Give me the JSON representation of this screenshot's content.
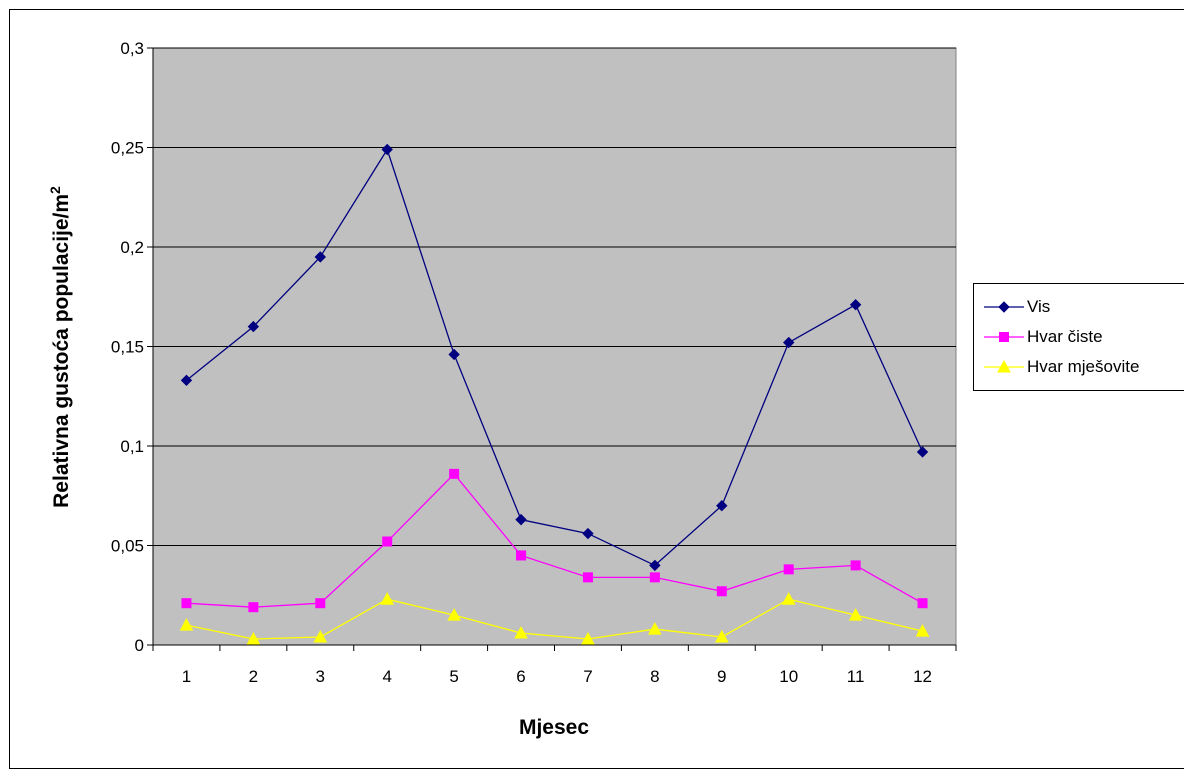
{
  "chart_data": {
    "type": "line",
    "title": "",
    "xlabel": "Mjesec",
    "ylabel": "Relativna gustoća populacije/m",
    "ylabel_superscript": "2",
    "categories": [
      "1",
      "2",
      "3",
      "4",
      "5",
      "6",
      "7",
      "8",
      "9",
      "10",
      "11",
      "12"
    ],
    "ylim": [
      0,
      0.3
    ],
    "yticks": [
      0,
      0.05,
      0.1,
      0.15,
      0.2,
      0.25,
      0.3
    ],
    "ytick_labels": [
      "0",
      "0,05",
      "0,1",
      "0,15",
      "0,2",
      "0,25",
      "0,3"
    ],
    "grid": true,
    "plot_background": "#c0c0c0",
    "legend_position": "right",
    "series": [
      {
        "name": "Vis",
        "color": "#000080",
        "marker": "diamond",
        "values": [
          0.133,
          0.16,
          0.195,
          0.249,
          0.146,
          0.063,
          0.056,
          0.04,
          0.07,
          0.152,
          0.171,
          0.097
        ]
      },
      {
        "name": "Hvar čiste",
        "color": "#ff00ff",
        "marker": "square",
        "values": [
          0.021,
          0.019,
          0.021,
          0.052,
          0.086,
          0.045,
          0.034,
          0.034,
          0.027,
          0.038,
          0.04,
          0.021
        ]
      },
      {
        "name": "Hvar mješovite",
        "color": "#ffff00",
        "marker": "triangle",
        "values": [
          0.01,
          0.003,
          0.004,
          0.023,
          0.015,
          0.006,
          0.003,
          0.008,
          0.004,
          0.023,
          0.015,
          0.007
        ]
      }
    ]
  }
}
